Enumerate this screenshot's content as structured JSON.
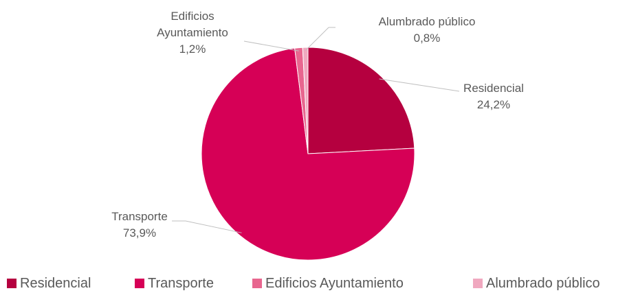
{
  "chart_data": {
    "type": "pie",
    "categories": [
      "Residencial",
      "Transporte",
      "Edificios Ayuntamiento",
      "Alumbrado público"
    ],
    "values": [
      24.2,
      73.9,
      1.2,
      0.8
    ],
    "value_labels": [
      "24,2%",
      "73,9%",
      "1,2%",
      "0,8%"
    ],
    "colors": [
      "#b5003f",
      "#d60056",
      "#e8668f",
      "#f0a8bf"
    ],
    "legend": "bottom"
  }
}
